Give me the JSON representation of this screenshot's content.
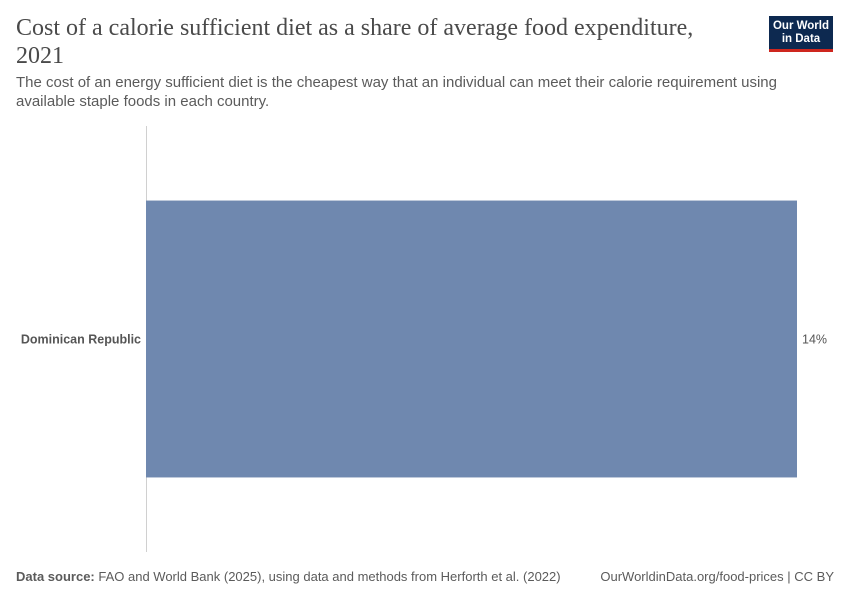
{
  "header": {
    "title": "Cost of a calorie sufficient diet as a share of average food expenditure, 2021",
    "subtitle": "The cost of an energy sufficient diet is the cheapest way that an individual can meet their calorie requirement using available staple foods in each country.",
    "logo_line1": "Our World",
    "logo_line2": "in Data"
  },
  "colors": {
    "bar": "#6f88af",
    "axis": "#d0d0d0",
    "text": "#555555"
  },
  "chart_data": {
    "type": "bar",
    "orientation": "horizontal",
    "categories": [
      "Dominican Republic"
    ],
    "values": [
      14
    ],
    "value_labels": [
      "14%"
    ],
    "unit": "%",
    "xlim": [
      0,
      14
    ],
    "title": "Cost of a calorie sufficient diet as a share of average food expenditure, 2021"
  },
  "footer": {
    "source_label": "Data source:",
    "source_text": "FAO and World Bank (2025), using data and methods from Herforth et al. (2022)",
    "url": "OurWorldinData.org/food-prices | CC BY"
  }
}
